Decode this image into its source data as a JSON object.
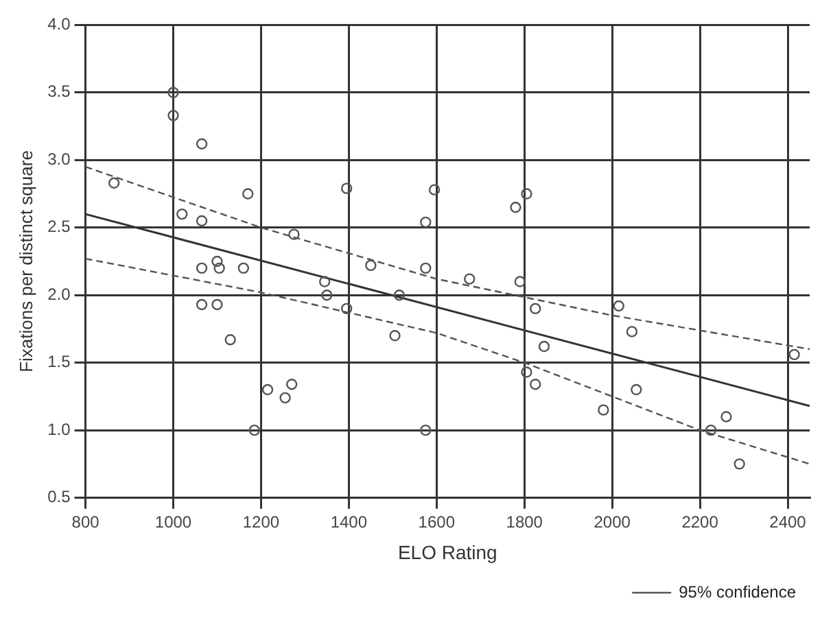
{
  "chart_data": {
    "type": "scatter",
    "xlabel": "ELO Rating",
    "ylabel": "Fixations per distinct square",
    "xlim": [
      800,
      2450
    ],
    "xticks": [
      800,
      1000,
      1200,
      1400,
      1600,
      1800,
      2000,
      2200,
      2400
    ],
    "ylim": [
      0.5,
      4.0
    ],
    "yticks": [
      {
        "value": 0.5,
        "label": "0.5"
      },
      {
        "value": 1,
        "label": "1.0"
      },
      {
        "value": 1.5,
        "label": "1.5"
      },
      {
        "value": 2,
        "label": "2.0"
      },
      {
        "value": 2.5,
        "label": "2.5"
      },
      {
        "value": 3,
        "label": "3.0"
      },
      {
        "value": 3.5,
        "label": "3.5"
      },
      {
        "value": 4,
        "label": "4.0"
      }
    ],
    "grid": true,
    "legend": "bottom right",
    "series": [
      {
        "marker": "circle",
        "color": "#555555",
        "x": [
          865,
          1000,
          1000,
          1065,
          1020,
          1065,
          1065,
          1100,
          1105,
          1065,
          1100,
          1130,
          1160,
          1170,
          1185,
          1215,
          1255,
          1270,
          1275,
          1345,
          1350,
          1395,
          1395,
          1450,
          1505,
          1515,
          1575,
          1575,
          1575,
          1595,
          1675,
          1780,
          1790,
          1805,
          1805,
          1825,
          1825,
          1845,
          1980,
          2015,
          2045,
          2055,
          2225,
          2260,
          2290,
          2415
        ],
        "values": [
          2.83,
          3.5,
          3.33,
          3.12,
          2.6,
          2.55,
          2.2,
          2.25,
          2.2,
          1.93,
          1.93,
          1.67,
          2.2,
          2.75,
          1.0,
          1.3,
          1.24,
          1.34,
          2.45,
          2.1,
          2.0,
          1.9,
          2.79,
          2.22,
          1.7,
          2.0,
          2.54,
          2.2,
          1.0,
          2.78,
          2.12,
          2.65,
          2.1,
          2.75,
          1.43,
          1.9,
          1.34,
          1.62,
          1.15,
          1.92,
          1.73,
          1.3,
          1.0,
          1.1,
          0.75,
          1.56
        ]
      },
      {
        "type": "line",
        "marker": "none",
        "color": "#333333",
        "line_style": "solid",
        "x": [
          800,
          2450
        ],
        "values": [
          2.6,
          1.18
        ]
      },
      {
        "type": "line",
        "marker": "none",
        "name": "95% confidence",
        "color": "#555555",
        "line_style": "dashed",
        "x": [
          800,
          1200,
          1600,
          2000,
          2450
        ],
        "values": [
          2.95,
          2.5,
          2.12,
          1.85,
          1.6
        ]
      },
      {
        "type": "line",
        "marker": "none",
        "color": "#555555",
        "line_style": "dashed",
        "x": [
          800,
          1200,
          1600,
          1800,
          2000,
          2200,
          2450
        ],
        "values": [
          2.27,
          2.02,
          1.72,
          1.5,
          1.25,
          1.0,
          0.75
        ]
      }
    ]
  }
}
